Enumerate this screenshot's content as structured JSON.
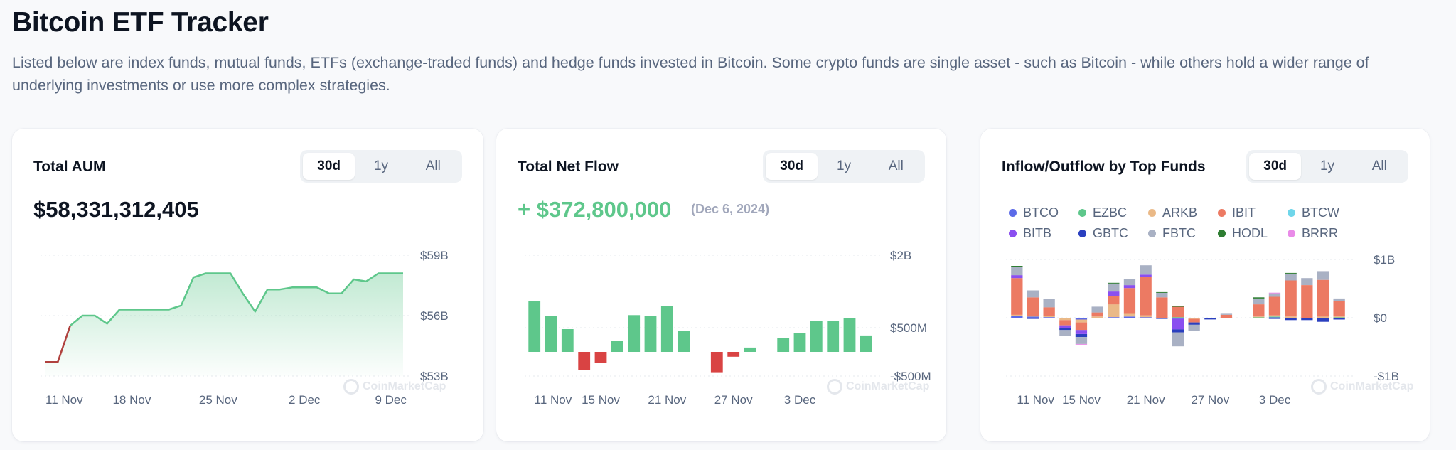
{
  "page": {
    "title": "Bitcoin ETF Tracker",
    "description": "Listed below are index funds, mutual funds, ETFs (exchange-traded funds) and hedge funds invested in Bitcoin. Some crypto funds are single asset - such as Bitcoin - while others hold a wider range of underlying investments or use more complex strategies."
  },
  "tabs": [
    "30d",
    "1y",
    "All"
  ],
  "watermark": "CoinMarketCap",
  "colors": {
    "green": "#5ec78b",
    "red": "#d94343",
    "text_primary": "#0d1421",
    "text_secondary": "#58667e"
  },
  "aum": {
    "title": "Total AUM",
    "value": "$58,331,312,405",
    "active_tab": "30d"
  },
  "netflow": {
    "title": "Total Net Flow",
    "value": "+ $372,800,000",
    "date": "(Dec 6, 2024)",
    "active_tab": "30d"
  },
  "funds": {
    "title": "Inflow/Outflow by Top Funds",
    "active_tab": "30d",
    "legend": [
      {
        "name": "BTCO",
        "color": "#5b6ae8"
      },
      {
        "name": "EZBC",
        "color": "#5ec78b"
      },
      {
        "name": "ARKB",
        "color": "#eab987"
      },
      {
        "name": "IBIT",
        "color": "#ec7a63"
      },
      {
        "name": "BTCW",
        "color": "#6fd6ea"
      },
      {
        "name": "BITB",
        "color": "#8a4ff0"
      },
      {
        "name": "GBTC",
        "color": "#2a3fbf"
      },
      {
        "name": "FBTC",
        "color": "#a9b1c4"
      },
      {
        "name": "HODL",
        "color": "#2e7d32"
      },
      {
        "name": "BRRR",
        "color": "#e98be8"
      }
    ]
  },
  "chart_data": [
    {
      "type": "area",
      "title": "Total AUM",
      "ylabel": "",
      "y_unit": "USD (billions)",
      "y_ticks": [
        "$59B",
        "$56B",
        "$53B"
      ],
      "y_tick_values": [
        59,
        56,
        53
      ],
      "ylim": [
        53,
        59
      ],
      "x_ticks": [
        "11 Nov",
        "18 Nov",
        "25 Nov",
        "2 Dec",
        "9 Dec"
      ],
      "x_tick_index": [
        0,
        7,
        14,
        21,
        28
      ],
      "series": [
        {
          "values": [
            53.7,
            53.7,
            55.5,
            56.0,
            56.0,
            55.6,
            56.3,
            56.3,
            56.3,
            56.3,
            56.3,
            56.5,
            57.9,
            58.1,
            58.1,
            58.1,
            57.1,
            56.2,
            57.3,
            57.3,
            57.4,
            57.4,
            57.4,
            57.1,
            57.1,
            57.8,
            57.7,
            58.1,
            58.1,
            58.1
          ]
        }
      ],
      "grid": true
    },
    {
      "type": "bar",
      "title": "Total Net Flow",
      "y_unit": "USD (millions)",
      "y_ticks": [
        "$2B",
        "$500M",
        "-$500M"
      ],
      "y_tick_values": [
        2000,
        500,
        -500
      ],
      "ylim": [
        -500,
        2000
      ],
      "x_ticks": [
        "11 Nov",
        "15 Nov",
        "21 Nov",
        "27 Nov",
        "3 Dec"
      ],
      "x_tick_index": [
        0,
        4,
        8,
        12,
        16
      ],
      "values": [
        1050,
        740,
        470,
        -380,
        -230,
        230,
        760,
        740,
        950,
        430,
        0,
        -420,
        -100,
        90,
        0,
        290,
        390,
        640,
        640,
        700,
        340
      ],
      "grid": true
    },
    {
      "type": "bar",
      "stacked": true,
      "title": "Inflow/Outflow by Top Funds",
      "y_unit": "USD (billions)",
      "y_ticks": [
        "$1B",
        "$0",
        "-$1B"
      ],
      "y_tick_values": [
        1,
        0,
        -1
      ],
      "ylim": [
        -1,
        1
      ],
      "x_ticks": [
        "11 Nov",
        "15 Nov",
        "21 Nov",
        "27 Nov",
        "3 Dec"
      ],
      "x_tick_index": [
        0,
        4,
        8,
        12,
        16
      ],
      "categories": [
        "1",
        "2",
        "3",
        "4",
        "5",
        "6",
        "7",
        "8",
        "9",
        "10",
        "11",
        "12",
        "13",
        "14",
        "15",
        "16",
        "17",
        "18",
        "19",
        "20",
        "21"
      ],
      "series": [
        {
          "name": "BTCO",
          "values": [
            0.03,
            0.02,
            0.01,
            0,
            -0.03,
            0,
            0.01,
            0.02,
            0.01,
            0,
            -0.02,
            0,
            0,
            0,
            0,
            0,
            0.01,
            0,
            0,
            0,
            0
          ]
        },
        {
          "name": "EZBC",
          "values": [
            0,
            0,
            0,
            0,
            0,
            0,
            0,
            0,
            0,
            0,
            0.01,
            0,
            0,
            0,
            0,
            0.01,
            0.01,
            0,
            0,
            0,
            0.01
          ]
        },
        {
          "name": "ARKB",
          "values": [
            0.02,
            0.01,
            0.02,
            -0.04,
            -0.05,
            0.02,
            0.22,
            0.06,
            0.03,
            0,
            0,
            -0.02,
            0,
            0,
            0,
            0.01,
            0.02,
            0.02,
            0,
            0.02,
            0.01
          ]
        },
        {
          "name": "IBIT",
          "values": [
            0.63,
            0.32,
            0.15,
            -0.09,
            -0.13,
            0.07,
            0.14,
            0.43,
            0.66,
            0.35,
            0.18,
            -0.06,
            -0.01,
            0.05,
            0,
            0.21,
            0.32,
            0.62,
            0.56,
            0.63,
            0.26
          ]
        },
        {
          "name": "BTCW",
          "values": [
            0,
            0,
            0,
            0,
            0,
            0,
            0,
            0,
            0,
            0,
            0,
            0,
            0,
            0,
            0,
            0,
            0,
            0,
            0,
            0,
            0
          ]
        },
        {
          "name": "BITB",
          "values": [
            0.05,
            0,
            0,
            -0.05,
            -0.07,
            0,
            0.08,
            0.05,
            0.04,
            0,
            -0.18,
            0,
            0,
            0,
            0,
            0,
            0,
            0,
            0,
            0,
            0
          ]
        },
        {
          "name": "GBTC",
          "values": [
            0,
            -0.02,
            0,
            -0.03,
            -0.05,
            0,
            0,
            0,
            0,
            -0.02,
            -0.05,
            -0.04,
            -0.02,
            0,
            0,
            0,
            -0.02,
            -0.04,
            -0.04,
            -0.07,
            -0.03
          ]
        },
        {
          "name": "FBTC",
          "values": [
            0.15,
            0.12,
            0.14,
            -0.1,
            -0.12,
            0.1,
            0.14,
            0.11,
            0.16,
            0.08,
            -0.24,
            -0.1,
            0,
            0.03,
            0,
            0.1,
            0.06,
            0.12,
            0.12,
            0.15,
            0.05
          ]
        },
        {
          "name": "HODL",
          "values": [
            0.01,
            0,
            0,
            0,
            0,
            0,
            0.01,
            0,
            0,
            0.01,
            0.01,
            0,
            0,
            0,
            0,
            0.02,
            0,
            0.01,
            0,
            0,
            0
          ]
        },
        {
          "name": "BRRR",
          "values": [
            0,
            0,
            0,
            0,
            -0.01,
            0,
            0,
            0,
            0,
            0,
            0,
            0,
            0,
            0,
            0,
            0,
            0.01,
            0,
            0,
            0,
            0
          ]
        }
      ],
      "legend_position": "top-left",
      "grid": true
    }
  ]
}
